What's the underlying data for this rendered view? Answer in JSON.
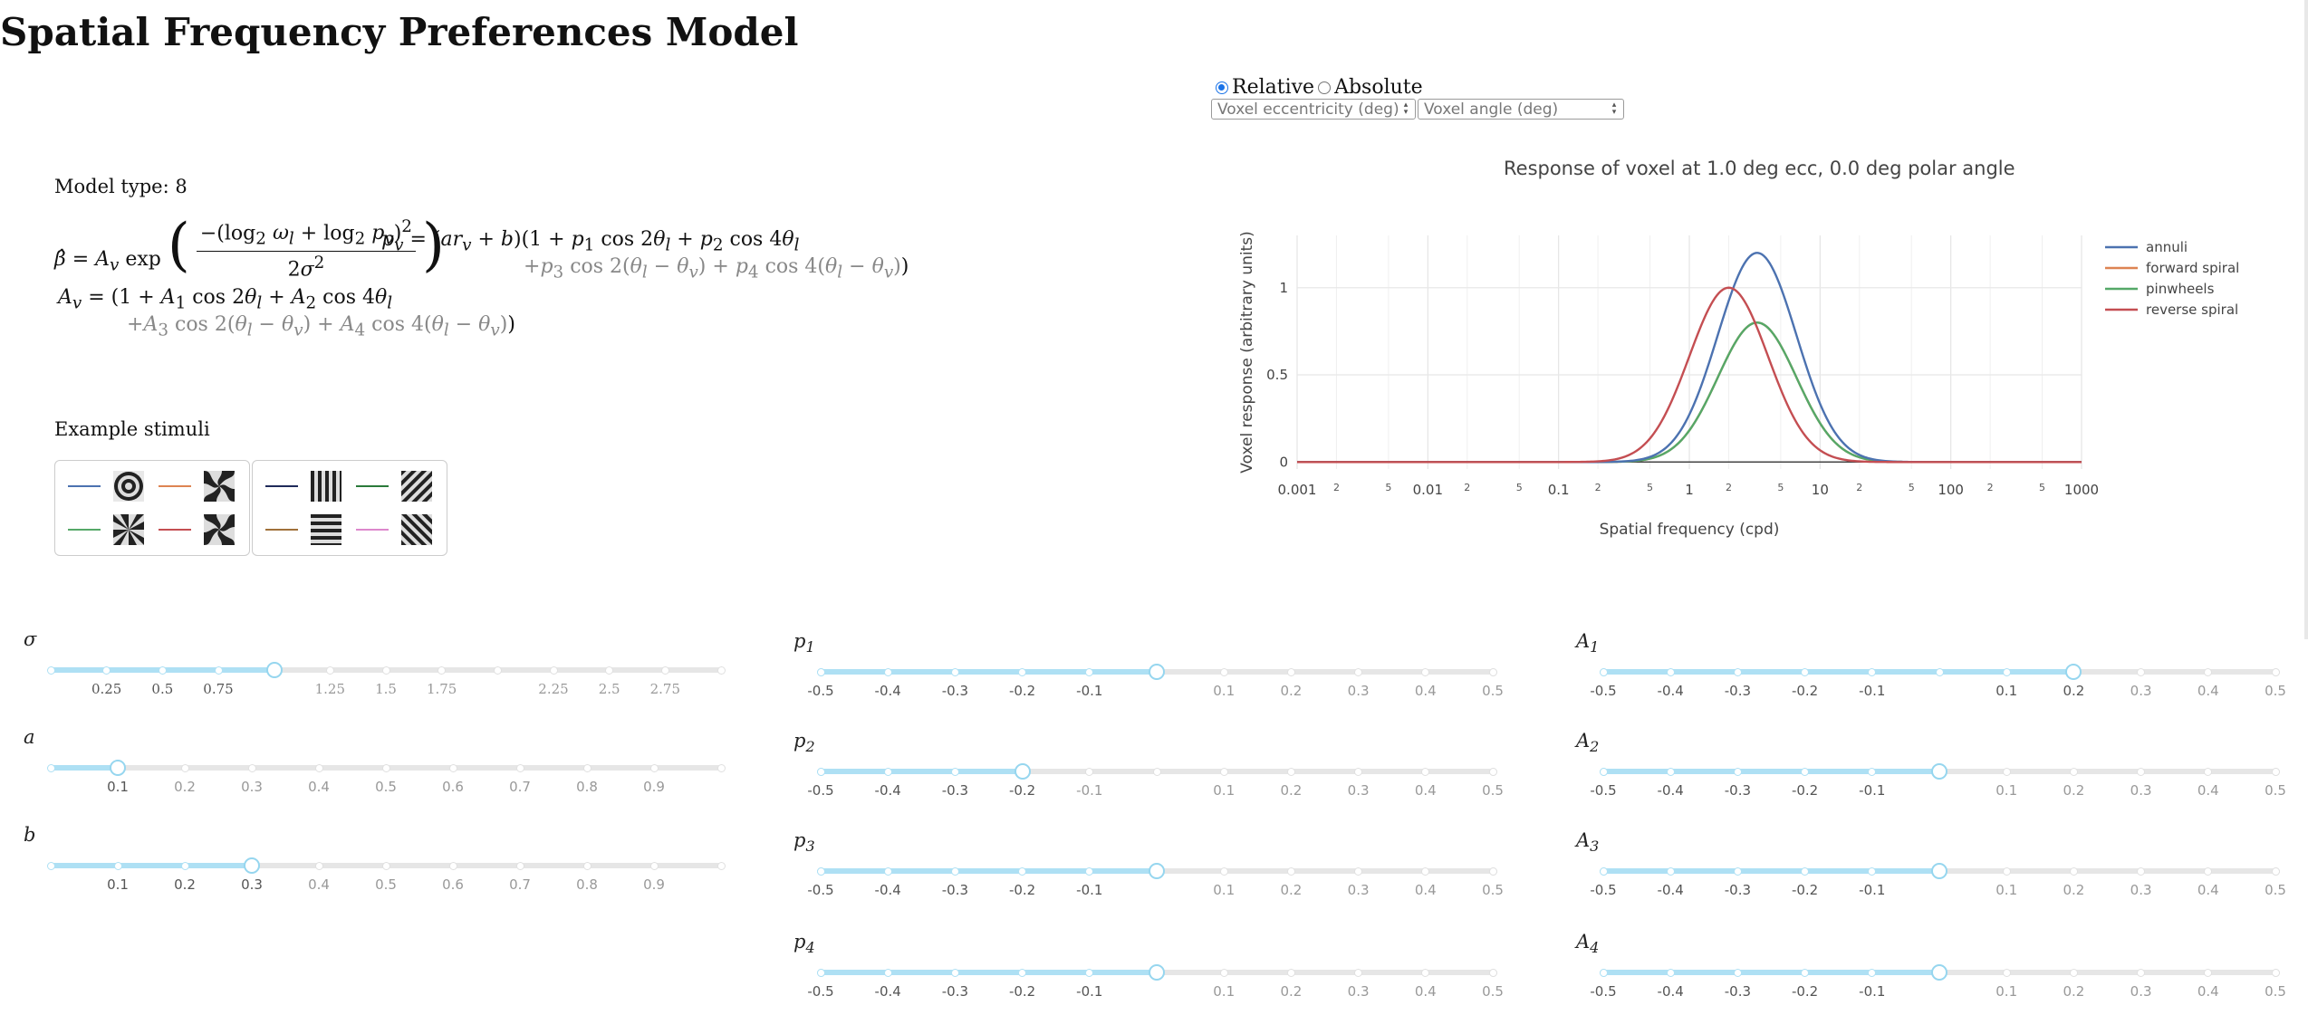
{
  "title": "Spatial Frequency Preferences Model",
  "mode": {
    "options": [
      "Relative",
      "Absolute"
    ],
    "selected": "Relative"
  },
  "inputs": {
    "eccentricity_placeholder": "Voxel eccentricity (deg)",
    "angle_placeholder": "Voxel angle (deg)"
  },
  "model": {
    "label": "Model type: 8"
  },
  "stimuli": {
    "label": "Example stimuli",
    "groups": [
      [
        {
          "name": "annuli",
          "color": "#4c72b0",
          "pattern": "annuli"
        },
        {
          "name": "forward spiral",
          "color": "#dd8452",
          "pattern": "forward-spiral"
        },
        {
          "name": "pinwheels",
          "color": "#55a868",
          "pattern": "pinwheels"
        },
        {
          "name": "reverse spiral",
          "color": "#c44e52",
          "pattern": "reverse-spiral"
        }
      ],
      [
        {
          "name": "vertical",
          "color": "#1f2a5a",
          "pattern": "vertical"
        },
        {
          "name": "diagonal-right",
          "color": "#2a7a3a",
          "pattern": "diagonal-right"
        },
        {
          "name": "horizontal",
          "color": "#a0703a",
          "pattern": "horizontal"
        },
        {
          "name": "diagonal-left",
          "color": "#dd88cc",
          "pattern": "diagonal-left"
        }
      ]
    ]
  },
  "chart_data": {
    "type": "line",
    "title": "Response of voxel at 1.0 deg ecc, 0.0 deg polar angle",
    "xlabel": "Spatial frequency (cpd)",
    "ylabel": "Voxel response (arbitrary units)",
    "xscale": "log",
    "xlim": [
      0.001,
      1000
    ],
    "ylim": [
      -0.04,
      1.3
    ],
    "xticks_major": [
      "0.001",
      "0.01",
      "0.1",
      "1",
      "10",
      "100",
      "1000"
    ],
    "xticks_minor": [
      "2",
      "5"
    ],
    "yticks": [
      "0",
      "0.5",
      "1"
    ],
    "legend_position": "right",
    "series": [
      {
        "name": "annuli",
        "color": "#4c72b0",
        "peak": 1.2,
        "peak_sf": 3.3
      },
      {
        "name": "forward spiral",
        "color": "#dd8452",
        "peak": 0.8,
        "peak_sf": 3.3
      },
      {
        "name": "pinwheels",
        "color": "#55a868",
        "peak": 0.8,
        "peak_sf": 3.3
      },
      {
        "name": "reverse spiral",
        "color": "#c44e52",
        "peak": 1.0,
        "peak_sf": 2.0
      }
    ],
    "sigma_octaves": 1.0
  },
  "sliders": [
    {
      "id": "sigma",
      "label": "σ",
      "min": 0,
      "max": 3,
      "value": 1.0,
      "ticks": [
        "0.25",
        "0.5",
        "0.75",
        "",
        "1.25",
        "1.5",
        "1.75",
        "",
        "2.25",
        "2.5",
        "2.75"
      ],
      "tick_values": [
        0.25,
        0.5,
        0.75,
        1.0,
        1.25,
        1.5,
        1.75,
        2.0,
        2.25,
        2.5,
        2.75
      ]
    },
    {
      "id": "a",
      "label": "a",
      "min": 0,
      "max": 1,
      "value": 0.1,
      "ticks": [
        "0.1",
        "0.2",
        "0.3",
        "0.4",
        "0.5",
        "0.6",
        "0.7",
        "0.8",
        "0.9"
      ],
      "tick_values": [
        0.1,
        0.2,
        0.3,
        0.4,
        0.5,
        0.6,
        0.7,
        0.8,
        0.9
      ]
    },
    {
      "id": "b",
      "label": "b",
      "min": 0,
      "max": 1,
      "value": 0.3,
      "ticks": [
        "0.1",
        "0.2",
        "0.3",
        "0.4",
        "0.5",
        "0.6",
        "0.7",
        "0.8",
        "0.9"
      ],
      "tick_values": [
        0.1,
        0.2,
        0.3,
        0.4,
        0.5,
        0.6,
        0.7,
        0.8,
        0.9
      ]
    },
    {
      "id": "p1",
      "label": "p1",
      "min": -0.5,
      "max": 0.5,
      "value": 0,
      "ticks": [
        "-0.5",
        "-0.4",
        "-0.3",
        "-0.2",
        "-0.1",
        "",
        "0.1",
        "0.2",
        "0.3",
        "0.4",
        "0.5"
      ],
      "tick_values": [
        -0.5,
        -0.4,
        -0.3,
        -0.2,
        -0.1,
        0,
        0.1,
        0.2,
        0.3,
        0.4,
        0.5
      ]
    },
    {
      "id": "p2",
      "label": "p2",
      "min": -0.5,
      "max": 0.5,
      "value": -0.2,
      "ticks": [
        "-0.5",
        "-0.4",
        "-0.3",
        "-0.2",
        "-0.1",
        "",
        "0.1",
        "0.2",
        "0.3",
        "0.4",
        "0.5"
      ],
      "tick_values": [
        -0.5,
        -0.4,
        -0.3,
        -0.2,
        -0.1,
        0,
        0.1,
        0.2,
        0.3,
        0.4,
        0.5
      ]
    },
    {
      "id": "p3",
      "label": "p3",
      "min": -0.5,
      "max": 0.5,
      "value": 0,
      "ticks": [
        "-0.5",
        "-0.4",
        "-0.3",
        "-0.2",
        "-0.1",
        "",
        "0.1",
        "0.2",
        "0.3",
        "0.4",
        "0.5"
      ],
      "tick_values": [
        -0.5,
        -0.4,
        -0.3,
        -0.2,
        -0.1,
        0,
        0.1,
        0.2,
        0.3,
        0.4,
        0.5
      ]
    },
    {
      "id": "p4",
      "label": "p4",
      "min": -0.5,
      "max": 0.5,
      "value": 0,
      "ticks": [
        "-0.5",
        "-0.4",
        "-0.3",
        "-0.2",
        "-0.1",
        "",
        "0.1",
        "0.2",
        "0.3",
        "0.4",
        "0.5"
      ],
      "tick_values": [
        -0.5,
        -0.4,
        -0.3,
        -0.2,
        -0.1,
        0,
        0.1,
        0.2,
        0.3,
        0.4,
        0.5
      ]
    },
    {
      "id": "A1",
      "label": "A1",
      "min": -0.5,
      "max": 0.5,
      "value": 0.2,
      "ticks": [
        "-0.5",
        "-0.4",
        "-0.3",
        "-0.2",
        "-0.1",
        "",
        "0.1",
        "0.2",
        "0.3",
        "0.4",
        "0.5"
      ],
      "tick_values": [
        -0.5,
        -0.4,
        -0.3,
        -0.2,
        -0.1,
        0,
        0.1,
        0.2,
        0.3,
        0.4,
        0.5
      ]
    },
    {
      "id": "A2",
      "label": "A2",
      "min": -0.5,
      "max": 0.5,
      "value": 0,
      "ticks": [
        "-0.5",
        "-0.4",
        "-0.3",
        "-0.2",
        "-0.1",
        "",
        "0.1",
        "0.2",
        "0.3",
        "0.4",
        "0.5"
      ],
      "tick_values": [
        -0.5,
        -0.4,
        -0.3,
        -0.2,
        -0.1,
        0,
        0.1,
        0.2,
        0.3,
        0.4,
        0.5
      ]
    },
    {
      "id": "A3",
      "label": "A3",
      "min": -0.5,
      "max": 0.5,
      "value": 0,
      "ticks": [
        "-0.5",
        "-0.4",
        "-0.3",
        "-0.2",
        "-0.1",
        "",
        "0.1",
        "0.2",
        "0.3",
        "0.4",
        "0.5"
      ],
      "tick_values": [
        -0.5,
        -0.4,
        -0.3,
        -0.2,
        -0.1,
        0,
        0.1,
        0.2,
        0.3,
        0.4,
        0.5
      ]
    },
    {
      "id": "A4",
      "label": "A4",
      "min": -0.5,
      "max": 0.5,
      "value": 0,
      "ticks": [
        "-0.5",
        "-0.4",
        "-0.3",
        "-0.2",
        "-0.1",
        "",
        "0.1",
        "0.2",
        "0.3",
        "0.4",
        "0.5"
      ],
      "tick_values": [
        -0.5,
        -0.4,
        -0.3,
        -0.2,
        -0.1,
        0,
        0.1,
        0.2,
        0.3,
        0.4,
        0.5
      ]
    }
  ]
}
